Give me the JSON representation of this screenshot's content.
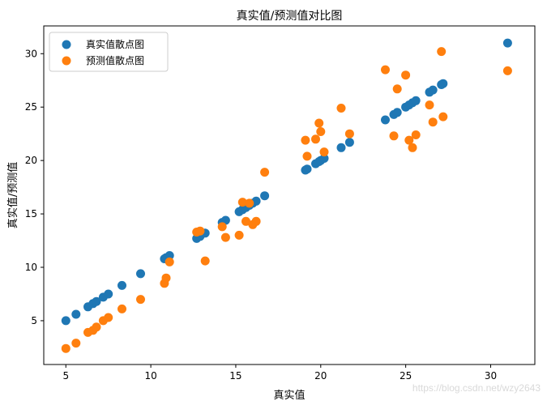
{
  "chart_data": {
    "type": "scatter",
    "title": "真实值/预测值对比图",
    "xlabel": "真实值",
    "ylabel": "真实值/预测值",
    "xlim": [
      3.7,
      32.6
    ],
    "ylim": [
      0.9,
      32.6
    ],
    "xticks": [
      5,
      10,
      15,
      20,
      25,
      30
    ],
    "yticks": [
      5,
      10,
      15,
      20,
      25,
      30
    ],
    "grid": false,
    "legend_position": "top-left",
    "x": [
      5.0,
      5.6,
      6.3,
      6.6,
      6.8,
      7.2,
      7.5,
      8.3,
      9.4,
      10.8,
      10.9,
      11.1,
      12.7,
      12.9,
      13.2,
      14.2,
      14.4,
      15.2,
      15.4,
      15.6,
      15.8,
      16.0,
      16.2,
      16.7,
      19.1,
      19.2,
      19.7,
      19.9,
      20.0,
      20.2,
      21.2,
      21.7,
      23.8,
      24.3,
      24.5,
      25.0,
      25.2,
      25.4,
      25.6,
      26.4,
      26.6,
      27.1,
      27.2,
      31.0
    ],
    "series": [
      {
        "name": "真实值散点图",
        "color": "#1f77b4",
        "y": [
          5.0,
          5.6,
          6.3,
          6.6,
          6.8,
          7.2,
          7.5,
          8.3,
          9.4,
          10.8,
          10.9,
          11.1,
          12.7,
          12.9,
          13.2,
          14.2,
          14.4,
          15.2,
          15.4,
          15.6,
          15.8,
          16.0,
          16.2,
          16.7,
          19.1,
          19.2,
          19.7,
          19.9,
          20.0,
          20.2,
          21.2,
          21.7,
          23.8,
          24.3,
          24.5,
          25.0,
          25.2,
          25.4,
          25.6,
          26.4,
          26.6,
          27.1,
          27.2,
          31.0
        ]
      },
      {
        "name": "预测值散点图",
        "color": "#ff7f0e",
        "y": [
          2.4,
          2.9,
          3.9,
          4.1,
          4.4,
          5.0,
          5.3,
          6.1,
          7.0,
          8.5,
          9.0,
          10.5,
          13.3,
          13.4,
          10.6,
          13.8,
          12.8,
          13.0,
          16.1,
          14.3,
          16.0,
          14.0,
          14.3,
          18.9,
          21.9,
          20.4,
          22.0,
          23.5,
          22.7,
          20.8,
          24.9,
          22.5,
          28.5,
          22.3,
          26.7,
          28.0,
          21.9,
          21.2,
          22.4,
          25.2,
          23.6,
          30.2,
          24.1,
          28.4
        ]
      }
    ]
  },
  "watermark": "https://blog.csdn.net/wzy2643"
}
